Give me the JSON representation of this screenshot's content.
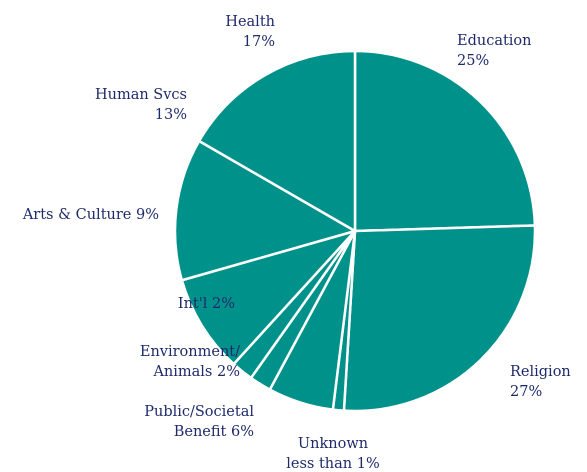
{
  "colors": {
    "slice_fill": "#00918A",
    "label_text": "#1F2A6B",
    "separator": "#FFFFFF"
  },
  "chart_data": {
    "type": "pie",
    "start_at": "12 o'clock",
    "direction": "clockwise",
    "slices": [
      {
        "name": "Education",
        "value": 25,
        "label_lines": [
          "Education",
          "25%"
        ]
      },
      {
        "name": "Religion",
        "value": 27,
        "label_lines": [
          "Religion",
          "27%"
        ]
      },
      {
        "name": "Unknown",
        "value": 1,
        "label_lines": [
          "Unknown",
          "less than 1%"
        ]
      },
      {
        "name": "Public/Societal Benefit",
        "value": 6,
        "label_lines": [
          "Public/Societal",
          "Benefit 6%"
        ]
      },
      {
        "name": "Environment/Animals",
        "value": 2,
        "label_lines": [
          "Environment/",
          "Animals 2%"
        ]
      },
      {
        "name": "Int'l",
        "value": 2,
        "label_lines": [
          "Int'l 2%"
        ]
      },
      {
        "name": "Arts & Culture",
        "value": 9,
        "label_lines": [
          "Arts & Culture 9%"
        ]
      },
      {
        "name": "Human Svcs",
        "value": 13,
        "label_lines": [
          "Human Svcs",
          "13%"
        ]
      },
      {
        "name": "Health",
        "value": 17,
        "label_lines": [
          "Health",
          "17%"
        ]
      }
    ]
  }
}
